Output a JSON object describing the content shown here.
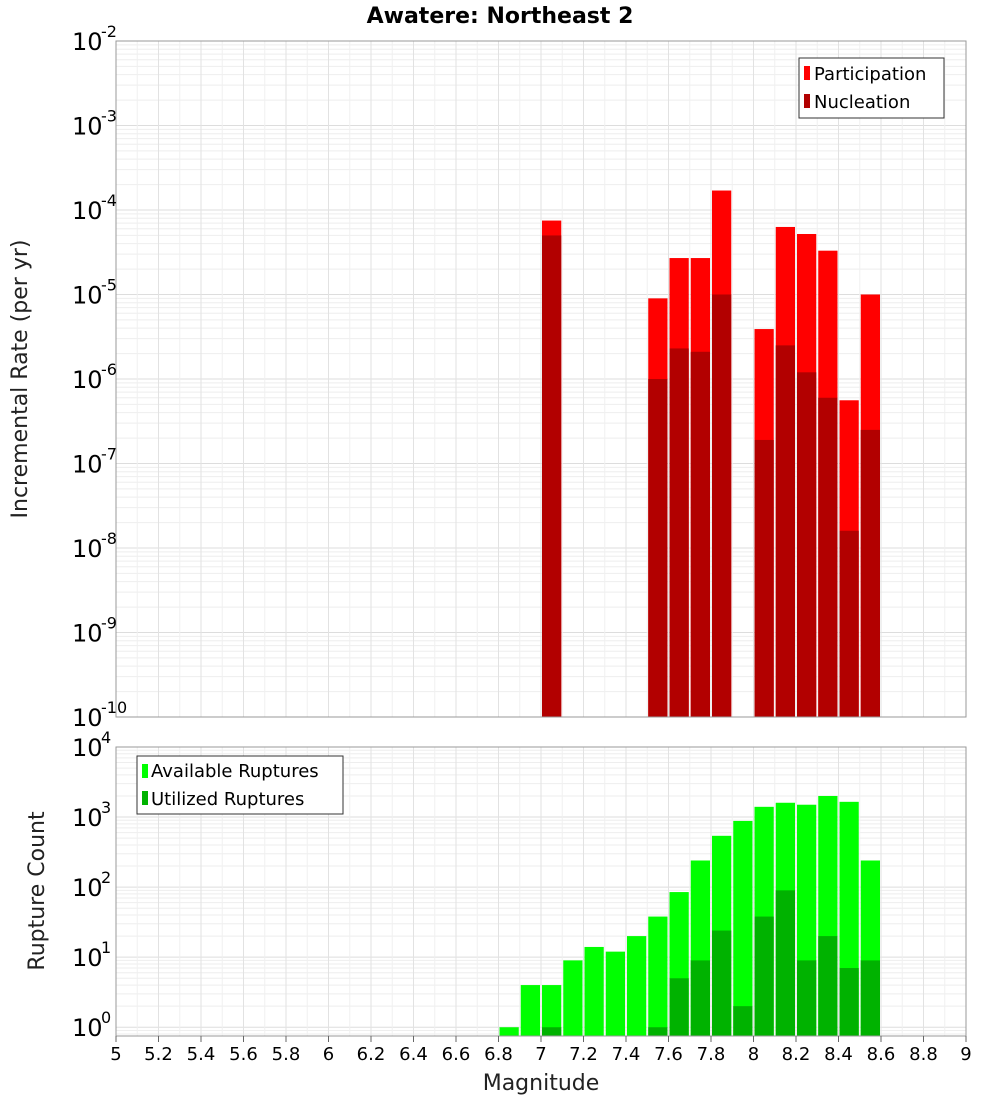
{
  "title": "Awatere: Northeast 2",
  "xlabel": "Magnitude",
  "chart_data": [
    {
      "type": "bar",
      "panel": "rates",
      "ylabel": "Incremental Rate (per yr)",
      "yscale": "log",
      "ylim": [
        1e-10,
        0.01
      ],
      "xlim": [
        5,
        9
      ],
      "grid": true,
      "legend_position": "top-right",
      "x": [
        7.05,
        7.55,
        7.65,
        7.75,
        7.85,
        8.05,
        8.15,
        8.25,
        8.35,
        8.45,
        8.55
      ],
      "series": [
        {
          "name": "Participation",
          "color": "#ff0000",
          "values": [
            7.5e-05,
            9e-06,
            2.7e-05,
            2.7e-05,
            0.00017,
            3.9e-06,
            6.3e-05,
            5.2e-05,
            3.3e-05,
            5.6e-07,
            1e-05
          ]
        },
        {
          "name": "Nucleation",
          "color": "#b20000",
          "values": [
            5e-05,
            1e-06,
            2.3e-06,
            2.1e-06,
            1e-05,
            1.9e-07,
            2.5e-06,
            1.2e-06,
            6e-07,
            1.6e-08,
            2.5e-07
          ]
        }
      ]
    },
    {
      "type": "bar",
      "panel": "counts",
      "ylabel": "Rupture Count",
      "yscale": "log",
      "ylim": [
        0.75,
        10000
      ],
      "xlim": [
        5,
        9
      ],
      "grid": true,
      "legend_position": "top-left",
      "x": [
        6.85,
        6.95,
        7.05,
        7.15,
        7.25,
        7.35,
        7.45,
        7.55,
        7.65,
        7.75,
        7.85,
        7.95,
        8.05,
        8.15,
        8.25,
        8.35,
        8.45,
        8.55
      ],
      "series": [
        {
          "name": "Available Ruptures",
          "color": "#00ff00",
          "values": [
            1,
            4,
            4,
            9,
            14,
            12,
            20,
            38,
            85,
            240,
            540,
            880,
            1400,
            1600,
            1500,
            2000,
            1650,
            240
          ]
        },
        {
          "name": "Utilized Ruptures",
          "color": "#00b200",
          "values": [
            0,
            0,
            1,
            0,
            0,
            0,
            0,
            1,
            5,
            9,
            24,
            2,
            38,
            90,
            9,
            20,
            7,
            9
          ]
        }
      ]
    }
  ]
}
